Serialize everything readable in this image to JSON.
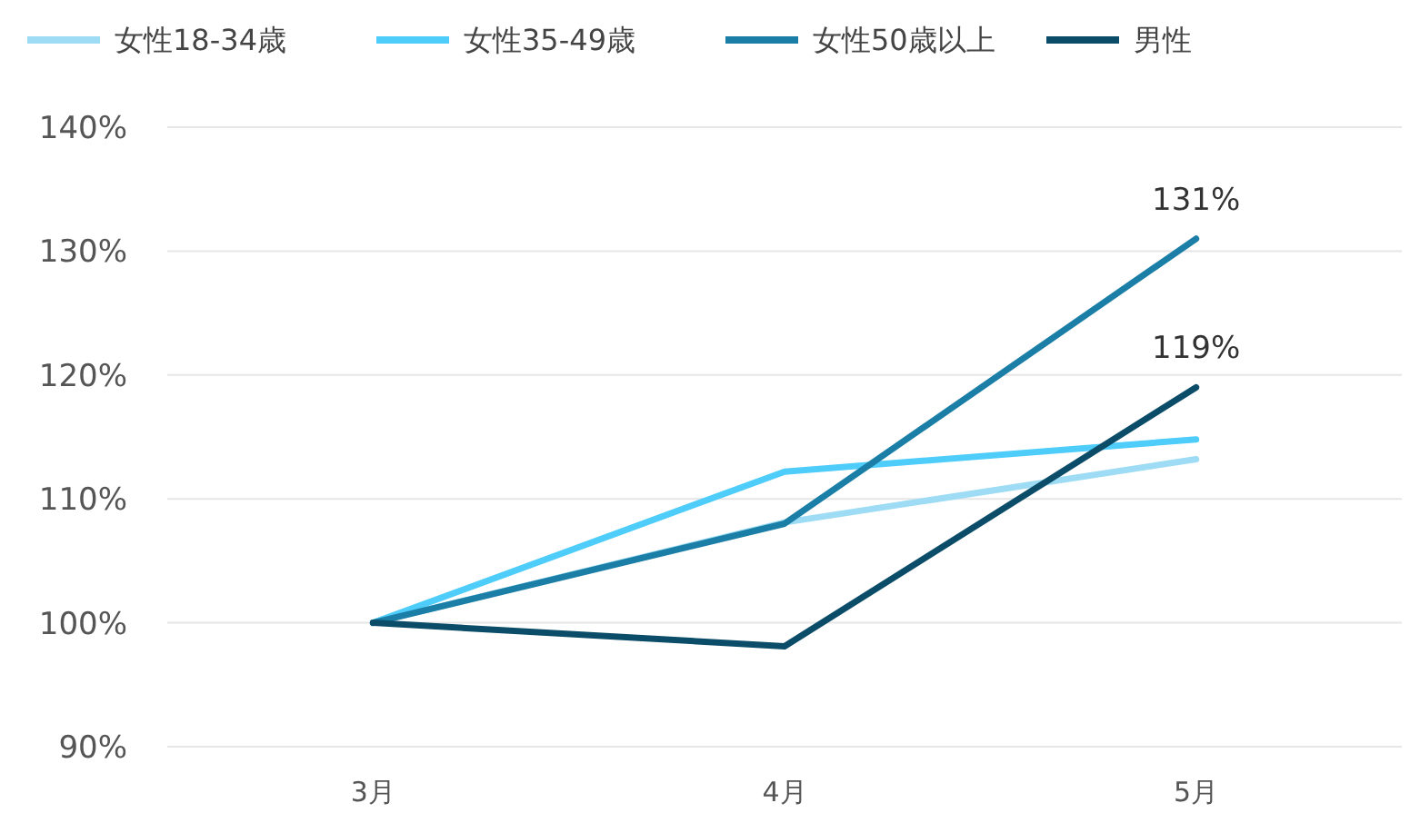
{
  "chart_data": {
    "type": "line",
    "categories": [
      "3月",
      "4月",
      "5月"
    ],
    "series": [
      {
        "name": "女性18-34歳",
        "color": "#9ddcf4",
        "values": [
          100,
          108.1,
          113.2
        ]
      },
      {
        "name": "女性35-49歳",
        "color": "#4fcdfa",
        "values": [
          100,
          112.2,
          114.8
        ]
      },
      {
        "name": "女性50歳以上",
        "color": "#1a7ea6",
        "values": [
          100,
          108,
          131
        ],
        "value_labels": [
          null,
          null,
          "131%"
        ]
      },
      {
        "name": "男性",
        "color": "#0b4c68",
        "values": [
          100,
          98.1,
          119
        ],
        "value_labels": [
          null,
          null,
          "119%"
        ]
      }
    ],
    "ylim": [
      90,
      140
    ],
    "yticks": [
      {
        "value": 90,
        "label": "90%"
      },
      {
        "value": 100,
        "label": "100%"
      },
      {
        "value": 110,
        "label": "110%"
      },
      {
        "value": 120,
        "label": "120%"
      },
      {
        "value": 130,
        "label": "130%"
      },
      {
        "value": 140,
        "label": "140%"
      }
    ],
    "grid": "y",
    "legend": "top",
    "marker": "none",
    "line_style": "solid"
  }
}
